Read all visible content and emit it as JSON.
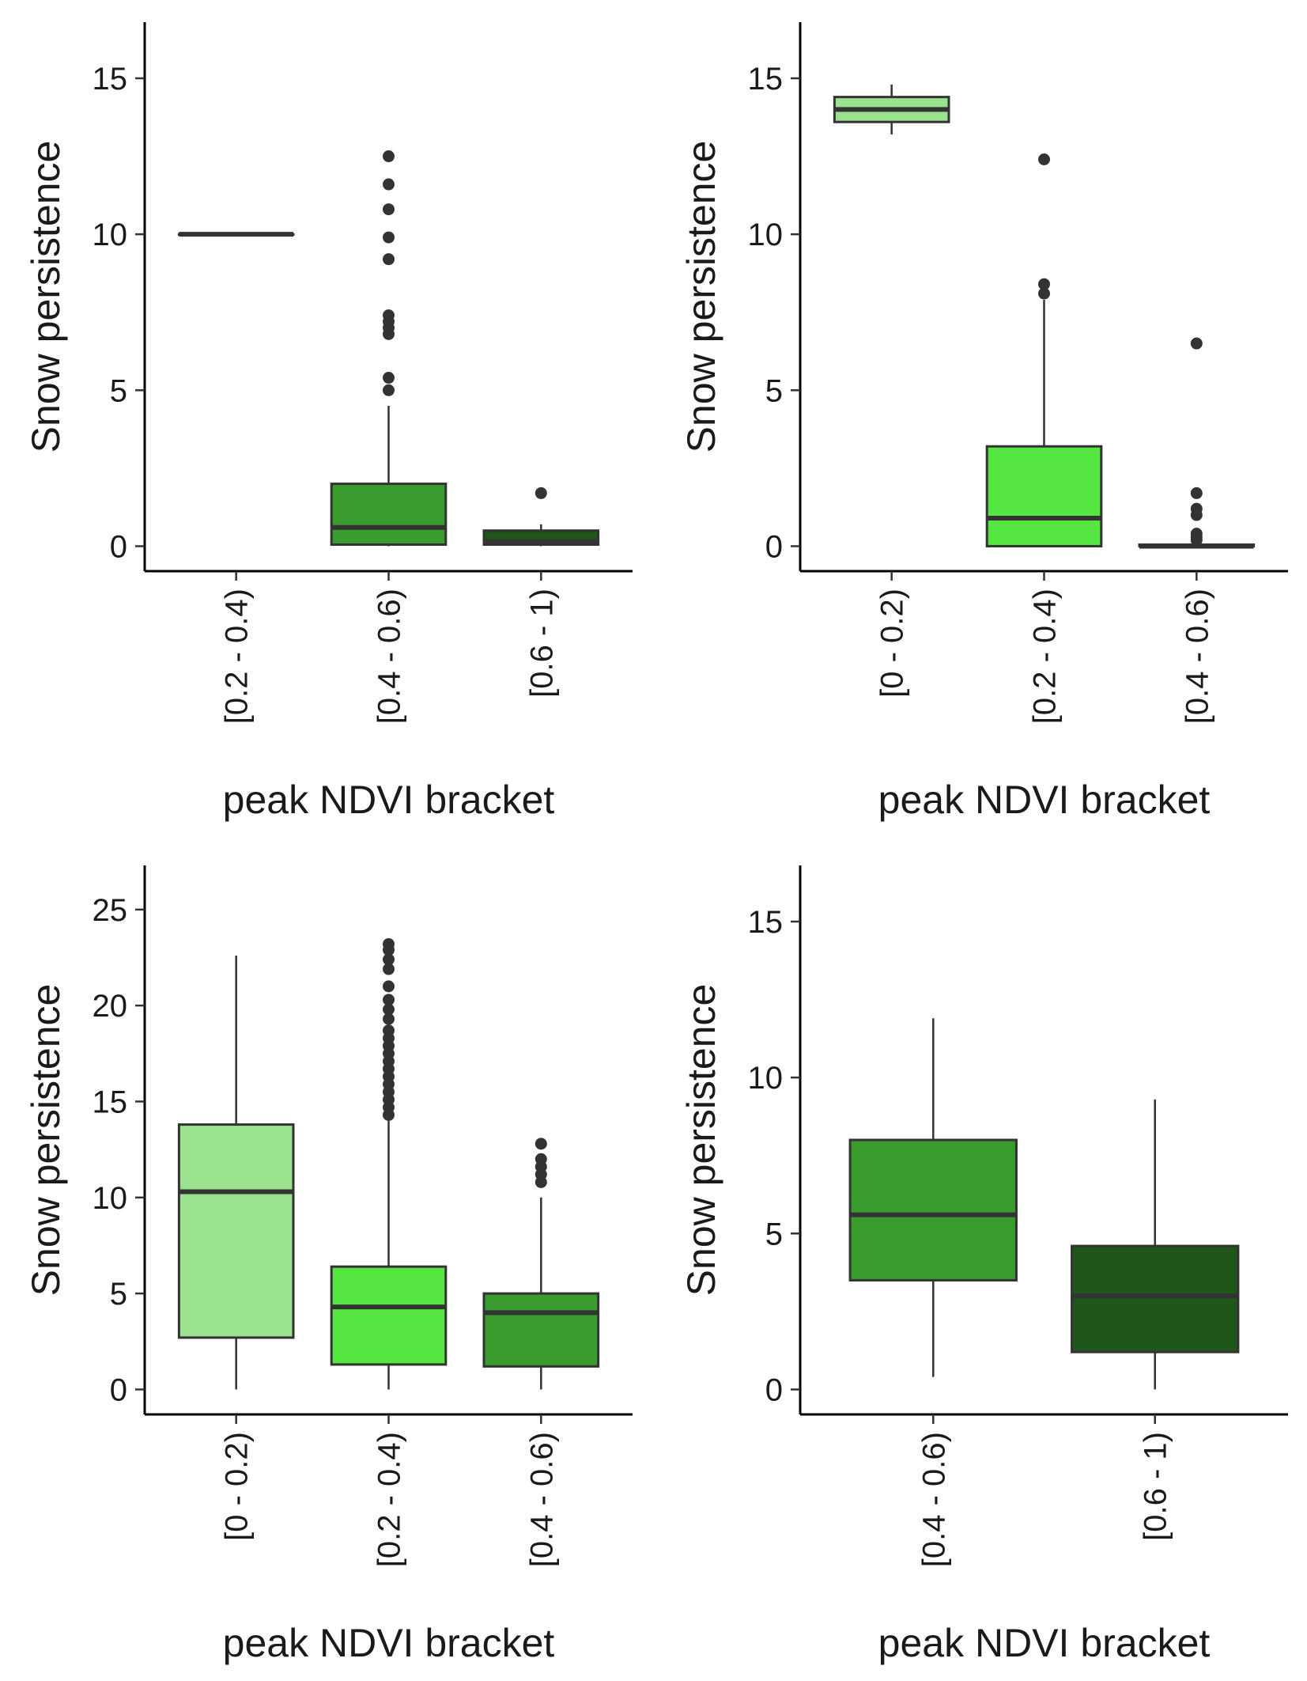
{
  "chart_data": [
    {
      "type": "boxplot",
      "position": "top-left",
      "xlabel": "peak NDVI bracket",
      "ylabel": "Snow persistence",
      "ylim": [
        -0.8,
        16.8
      ],
      "yticks": [
        0,
        5,
        10,
        15
      ],
      "categories": [
        "[0.2 - 0.4)",
        "[0.4 - 0.6)",
        "[0.6 - 1)"
      ],
      "colors": [
        "#9ae28e",
        "#3a9c2e",
        "#1f5619"
      ],
      "boxes": [
        {
          "min": 10,
          "q1": 10,
          "median": 10,
          "q3": 10,
          "max": 10,
          "outliers": [],
          "color": "#9ae28e"
        },
        {
          "min": 0,
          "q1": 0.05,
          "median": 0.6,
          "q3": 2.0,
          "max": 4.5,
          "outliers": [
            5.0,
            5.4,
            6.8,
            7.0,
            7.2,
            7.4,
            9.2,
            9.9,
            10.8,
            11.6,
            12.5
          ],
          "color": "#3a9c2e"
        },
        {
          "min": 0,
          "q1": 0.05,
          "median": 0.15,
          "q3": 0.5,
          "max": 0.7,
          "outliers": [
            1.7
          ],
          "color": "#1f5619"
        }
      ]
    },
    {
      "type": "boxplot",
      "position": "top-right",
      "xlabel": "peak NDVI bracket",
      "ylabel": "Snow persistence",
      "ylim": [
        -0.8,
        16.8
      ],
      "yticks": [
        0,
        5,
        10,
        15
      ],
      "categories": [
        "[0 - 0.2)",
        "[0.2 - 0.4)",
        "[0.4 - 0.6)"
      ],
      "colors": [
        "#9ae28e",
        "#55e641",
        "#3a9c2e"
      ],
      "boxes": [
        {
          "min": 13.2,
          "q1": 13.6,
          "median": 14.0,
          "q3": 14.4,
          "max": 14.8,
          "outliers": [],
          "color": "#9ae28e"
        },
        {
          "min": 0,
          "q1": 0,
          "median": 0.9,
          "q3": 3.2,
          "max": 7.9,
          "outliers": [
            8.1,
            8.4,
            12.4
          ],
          "color": "#55e641"
        },
        {
          "min": 0,
          "q1": 0,
          "median": 0,
          "q3": 0.05,
          "max": 0.1,
          "outliers": [
            0.2,
            0.3,
            0.4,
            1.0,
            1.2,
            1.7,
            6.5
          ],
          "color": "#3a9c2e"
        }
      ]
    },
    {
      "type": "boxplot",
      "position": "bottom-left",
      "xlabel": "peak NDVI bracket",
      "ylabel": "Snow persistence",
      "ylim": [
        -1.3,
        27.3
      ],
      "yticks": [
        0,
        5,
        10,
        15,
        20,
        25
      ],
      "categories": [
        "[0 - 0.2)",
        "[0.2 - 0.4)",
        "[0.4 - 0.6)"
      ],
      "colors": [
        "#9ae28e",
        "#55e641",
        "#3a9c2e"
      ],
      "boxes": [
        {
          "min": 0,
          "q1": 2.7,
          "median": 10.3,
          "q3": 13.8,
          "max": 22.6,
          "outliers": [],
          "color": "#9ae28e"
        },
        {
          "min": 0,
          "q1": 1.3,
          "median": 4.3,
          "q3": 6.4,
          "max": 14.0,
          "outliers": [
            14.3,
            14.7,
            15.1,
            15.5,
            15.9,
            16.3,
            16.7,
            17.1,
            17.5,
            17.9,
            18.3,
            18.7,
            19.3,
            19.8,
            20.3,
            21.0,
            21.9,
            22.4,
            22.9,
            23.2
          ],
          "color": "#55e641"
        },
        {
          "min": 0,
          "q1": 1.2,
          "median": 4.0,
          "q3": 5.0,
          "max": 10.0,
          "outliers": [
            10.8,
            11.2,
            11.6,
            12.0,
            12.8
          ],
          "color": "#3a9c2e"
        }
      ]
    },
    {
      "type": "boxplot",
      "position": "bottom-right",
      "xlabel": "peak NDVI bracket",
      "ylabel": "Snow persistence",
      "ylim": [
        -0.8,
        16.8
      ],
      "yticks": [
        0,
        5,
        10,
        15
      ],
      "categories": [
        "[0.4 - 0.6)",
        "[0.6 - 1)"
      ],
      "colors": [
        "#3a9c2e",
        "#1f5619"
      ],
      "boxes": [
        {
          "min": 0.4,
          "q1": 3.5,
          "median": 5.6,
          "q3": 8.0,
          "max": 11.9,
          "outliers": [],
          "color": "#3a9c2e"
        },
        {
          "min": 0,
          "q1": 1.2,
          "median": 3.0,
          "q3": 4.6,
          "max": 9.3,
          "outliers": [],
          "color": "#1f5619"
        }
      ]
    }
  ]
}
